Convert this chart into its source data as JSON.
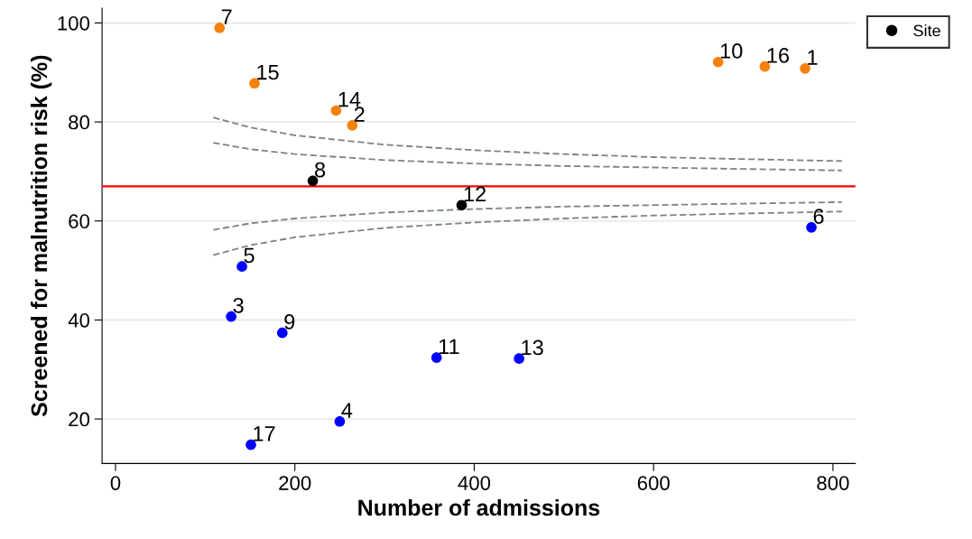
{
  "chart_data": {
    "type": "scatter",
    "xlabel": "Number of admissions",
    "ylabel": "Screened for malnutrition risk (%)",
    "xlim": [
      -15,
      825
    ],
    "ylim": [
      11,
      103
    ],
    "xticks": [
      0,
      200,
      400,
      600,
      800
    ],
    "yticks": [
      20,
      40,
      60,
      80,
      100
    ],
    "grid": "y",
    "legend": "top right",
    "marker": "circle",
    "series": [
      {
        "name": "Site",
        "color": "#000000",
        "x": [
          769,
          264,
          129,
          250,
          141,
          776,
          116,
          220,
          186,
          672,
          358,
          386,
          450,
          246,
          155,
          724,
          151
        ],
        "values": [
          90.8,
          79.3,
          40.7,
          19.5,
          50.8,
          58.7,
          99.0,
          68.1,
          37.4,
          92.1,
          32.4,
          63.2,
          32.2,
          82.3,
          87.8,
          91.2,
          14.8
        ],
        "colors": [
          "#f5820d",
          "#f5820d",
          "#0000ff",
          "#0000ff",
          "#0000ff",
          "#0000ff",
          "#f5820d",
          "#000000",
          "#0000ff",
          "#f5820d",
          "#0000ff",
          "#000000",
          "#0000ff",
          "#f5820d",
          "#f5820d",
          "#f5820d",
          "#0000ff"
        ]
      },
      {
        "type": "line",
        "color": "#808080",
        "line_style": "dashed",
        "marker": "none",
        "x": [
          109,
          150,
          200,
          300,
          400,
          500,
          600,
          700,
          810
        ],
        "values": [
          80.9,
          78.9,
          77.3,
          75.4,
          74.3,
          73.5,
          72.9,
          72.5,
          72.1
        ]
      },
      {
        "type": "line",
        "color": "#808080",
        "line_style": "dashed",
        "marker": "none",
        "x": [
          109,
          150,
          200,
          300,
          400,
          500,
          600,
          700,
          810
        ],
        "values": [
          75.8,
          74.5,
          73.5,
          72.3,
          71.6,
          71.1,
          70.8,
          70.5,
          70.2
        ]
      },
      {
        "type": "line",
        "color": "#808080",
        "line_style": "dashed",
        "marker": "none",
        "x": [
          109,
          150,
          200,
          300,
          400,
          500,
          600,
          700,
          810
        ],
        "values": [
          58.2,
          59.5,
          60.5,
          61.7,
          62.4,
          62.9,
          63.2,
          63.5,
          63.8
        ]
      },
      {
        "type": "line",
        "color": "#808080",
        "line_style": "dashed",
        "marker": "none",
        "x": [
          109,
          150,
          200,
          300,
          400,
          500,
          600,
          700,
          810
        ],
        "values": [
          53.1,
          55.1,
          56.7,
          58.6,
          59.7,
          60.5,
          61.1,
          61.5,
          61.9
        ]
      }
    ],
    "ref_lines": [
      {
        "axis": "y",
        "value": 67,
        "color": "#ff0000",
        "line_style": "solid"
      }
    ],
    "annotations": [
      {
        "text": "1",
        "x": 769,
        "y": 90.8
      },
      {
        "text": "2",
        "x": 264,
        "y": 79.3
      },
      {
        "text": "3",
        "x": 129,
        "y": 40.7
      },
      {
        "text": "4",
        "x": 250,
        "y": 19.5
      },
      {
        "text": "5",
        "x": 141,
        "y": 50.8
      },
      {
        "text": "6",
        "x": 776,
        "y": 58.7
      },
      {
        "text": "7",
        "x": 116,
        "y": 99.0
      },
      {
        "text": "8",
        "x": 220,
        "y": 68.1
      },
      {
        "text": "9",
        "x": 186,
        "y": 37.4
      },
      {
        "text": "10",
        "x": 672,
        "y": 92.1
      },
      {
        "text": "11",
        "x": 358,
        "y": 32.4
      },
      {
        "text": "12",
        "x": 386,
        "y": 63.2
      },
      {
        "text": "13",
        "x": 450,
        "y": 32.2
      },
      {
        "text": "14",
        "x": 246,
        "y": 82.3
      },
      {
        "text": "15",
        "x": 155,
        "y": 87.8
      },
      {
        "text": "16",
        "x": 724,
        "y": 91.2
      },
      {
        "text": "17",
        "x": 151,
        "y": 14.8
      }
    ]
  }
}
